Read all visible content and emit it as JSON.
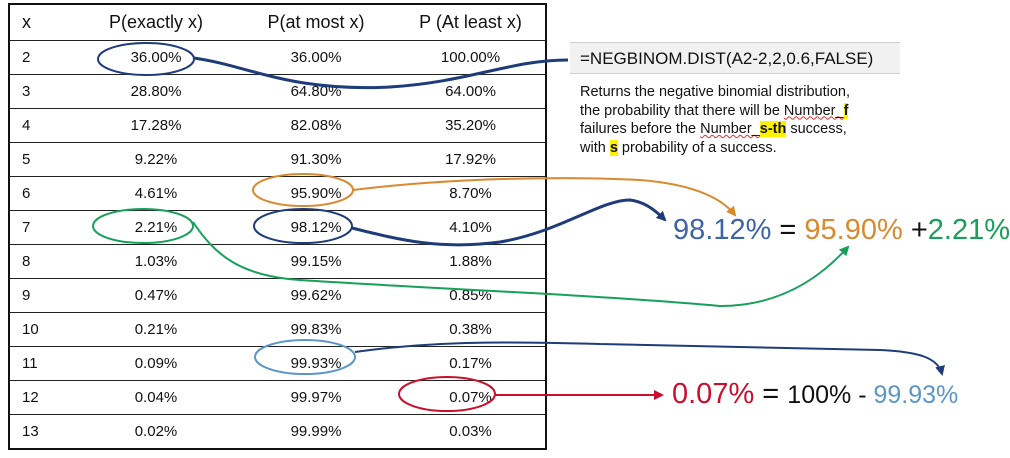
{
  "table": {
    "headers": [
      "x",
      "P(exactly x)",
      "P(at most x)",
      "P (At least x)"
    ],
    "rows": [
      [
        "2",
        "36.00%",
        "36.00%",
        "100.00%"
      ],
      [
        "3",
        "28.80%",
        "64.80%",
        "64.00%"
      ],
      [
        "4",
        "17.28%",
        "82.08%",
        "35.20%"
      ],
      [
        "5",
        "9.22%",
        "91.30%",
        "17.92%"
      ],
      [
        "6",
        "4.61%",
        "95.90%",
        "8.70%"
      ],
      [
        "7",
        "2.21%",
        "98.12%",
        "4.10%"
      ],
      [
        "8",
        "1.03%",
        "99.15%",
        "1.88%"
      ],
      [
        "9",
        "0.47%",
        "99.62%",
        "0.85%"
      ],
      [
        "10",
        "0.21%",
        "99.83%",
        "0.38%"
      ],
      [
        "11",
        "0.09%",
        "99.93%",
        "0.17%"
      ],
      [
        "12",
        "0.04%",
        "99.97%",
        "0.07%"
      ],
      [
        "13",
        "0.02%",
        "99.99%",
        "0.03%"
      ]
    ]
  },
  "formula": "=NEGBINOM.DIST(A2-2,2,0.6,FALSE)",
  "description": {
    "line1": "Returns the negative binomial distribution,",
    "line2a": "the probability that there will be ",
    "line2b": "Number_",
    "line2c": "f",
    "line3a": "failures before the ",
    "line3b": "Number_",
    "line3c": "s-th",
    "line3d": " success,",
    "line4a": "with ",
    "line4b": "s",
    "line4c": " probability of a success."
  },
  "eq1": {
    "result": "98.12%",
    "equals": "=",
    "term1": "95.90%",
    "plus": "+",
    "term2": "2.21%"
  },
  "eq2": {
    "result": "0.07%",
    "equals": "=",
    "whole": "100%",
    "minus": " - ",
    "term": "99.93%"
  },
  "colors": {
    "navy": "#1f3c7a",
    "blue": "#3d64a8",
    "orange": "#d9892f",
    "green": "#16a05a",
    "red": "#c8102e",
    "sky": "#5b96c8"
  }
}
